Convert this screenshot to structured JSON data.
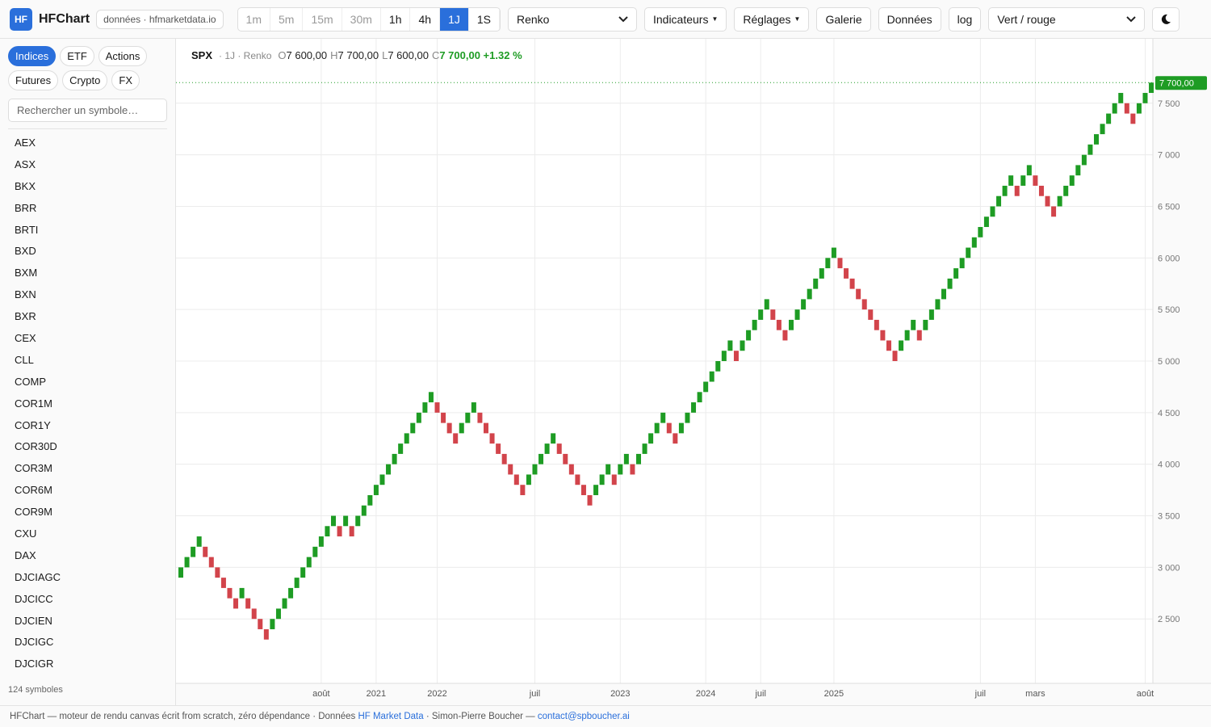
{
  "header": {
    "logo": "HF",
    "app_name": "HFChart",
    "source": "données · hfmarketdata.io",
    "timeframes": [
      "1m",
      "5m",
      "15m",
      "30m",
      "1h",
      "4h",
      "1J",
      "1S"
    ],
    "active_timeframe": 6,
    "chart_type": "Renko",
    "indicators": "Indicateurs",
    "settings": "Réglages",
    "gallery": "Galerie",
    "data": "Données",
    "log": "log",
    "palette": "Vert / rouge"
  },
  "sidebar": {
    "tabs": [
      "Indices",
      "ETF",
      "Actions",
      "Futures",
      "Crypto",
      "FX"
    ],
    "active_tab": 0,
    "search_placeholder": "Rechercher un symbole…",
    "symbols": [
      "AEX",
      "ASX",
      "BKX",
      "BRR",
      "BRTI",
      "BXD",
      "BXM",
      "BXN",
      "BXR",
      "CEX",
      "CLL",
      "COMP",
      "COR1M",
      "COR1Y",
      "COR30D",
      "COR3M",
      "COR6M",
      "COR9M",
      "CXU",
      "DAX",
      "DJCIAGC",
      "DJCICC",
      "DJCIEN",
      "DJCIGC",
      "DJCIGR"
    ],
    "count": "124 symboles"
  },
  "chart_data": {
    "type": "renko",
    "symbol": "SPX",
    "subtitle": "· 1J · Renko",
    "ohlc": [
      {
        "label": "O",
        "value": "7 600,00"
      },
      {
        "label": "H",
        "value": "7 700,00"
      },
      {
        "label": "L",
        "value": "7 600,00"
      }
    ],
    "close_label": "C",
    "close": "7 700,00 +1.32 %",
    "brick_size": 100,
    "up_color": "#1e9c24",
    "down_color": "#d2444b",
    "values": [
      3000,
      3100,
      3200,
      3300,
      3100,
      3000,
      2900,
      2800,
      2700,
      2600,
      2800,
      2600,
      2500,
      2400,
      2300,
      2500,
      2600,
      2700,
      2800,
      2900,
      3000,
      3100,
      3200,
      3300,
      3400,
      3500,
      3300,
      3500,
      3300,
      3500,
      3600,
      3700,
      3800,
      3900,
      4000,
      4100,
      4200,
      4300,
      4400,
      4500,
      4600,
      4700,
      4500,
      4400,
      4300,
      4200,
      4400,
      4500,
      4600,
      4400,
      4300,
      4200,
      4100,
      4000,
      3900,
      3800,
      3700,
      3900,
      4000,
      4100,
      4200,
      4300,
      4100,
      4000,
      3900,
      3800,
      3700,
      3600,
      3800,
      3900,
      4000,
      3800,
      4000,
      4100,
      3900,
      4100,
      4200,
      4300,
      4400,
      4500,
      4300,
      4200,
      4400,
      4500,
      4600,
      4700,
      4800,
      4900,
      5000,
      5100,
      5200,
      5000,
      5200,
      5300,
      5400,
      5500,
      5600,
      5400,
      5300,
      5200,
      5400,
      5500,
      5600,
      5700,
      5800,
      5900,
      6000,
      6100,
      5900,
      5800,
      5700,
      5600,
      5500,
      5400,
      5300,
      5200,
      5100,
      5000,
      5200,
      5300,
      5400,
      5200,
      5400,
      5500,
      5600,
      5700,
      5800,
      5900,
      6000,
      6100,
      6200,
      6300,
      6400,
      6500,
      6600,
      6700,
      6800,
      6600,
      6800,
      6900,
      6700,
      6600,
      6500,
      6400,
      6600,
      6700,
      6800,
      6900,
      7000,
      7100,
      7200,
      7300,
      7400,
      7500,
      7600,
      7400,
      7300,
      7500,
      7600,
      7700
    ],
    "ylim": [
      1875,
      8125
    ],
    "yticks": [
      {
        "value": 2500,
        "label": "2 500"
      },
      {
        "value": 3000,
        "label": "3 000"
      },
      {
        "value": 3500,
        "label": "3 500"
      },
      {
        "value": 4000,
        "label": "4 000"
      },
      {
        "value": 4500,
        "label": "4 500"
      },
      {
        "value": 5000,
        "label": "5 000"
      },
      {
        "value": 5500,
        "label": "5 500"
      },
      {
        "value": 6000,
        "label": "6 000"
      },
      {
        "value": 6500,
        "label": "6 500"
      },
      {
        "value": 7000,
        "label": "7 000"
      },
      {
        "value": 7500,
        "label": "7 500"
      }
    ],
    "xticks": [
      {
        "value": 23,
        "label": "août"
      },
      {
        "value": 32,
        "label": "2021"
      },
      {
        "value": 42,
        "label": "2022"
      },
      {
        "value": 58,
        "label": "juil"
      },
      {
        "value": 72,
        "label": "2023"
      },
      {
        "value": 86,
        "label": "2024"
      },
      {
        "value": 95,
        "label": "juil"
      },
      {
        "value": 107,
        "label": "2025"
      },
      {
        "value": 131,
        "label": "juil"
      },
      {
        "value": 140,
        "label": "mars"
      },
      {
        "value": 158,
        "label": "août"
      }
    ],
    "last_price": {
      "value": 7700,
      "label": "7 700,00"
    },
    "grid": true
  },
  "footer": {
    "text": "HFChart — moteur de rendu canvas écrit from scratch, zéro dépendance · Données ",
    "link1": "HF Market Data",
    "sep": " · Simon-Pierre Boucher — ",
    "link2": "contact@spboucher.ai"
  }
}
